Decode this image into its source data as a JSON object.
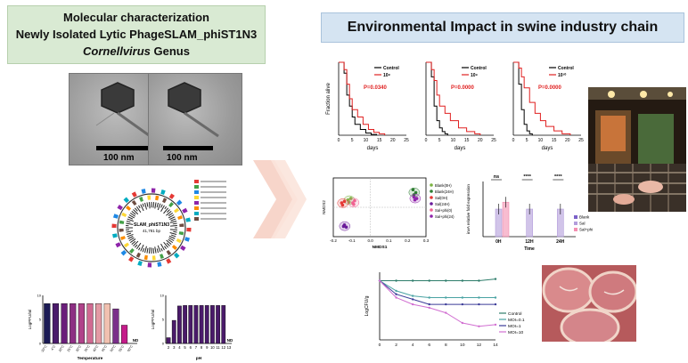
{
  "left_title": {
    "line1": "Molecular characterization",
    "line2": "Newly Isolated Lytic PhageSLAM_phiST1N3",
    "line3_italic": "Cornellvirus",
    "line3_rest": " Genus"
  },
  "right_title": "Environmental Impact in swine industry chain",
  "tem": {
    "scale_label": "100 nm"
  },
  "genome_map": {
    "name": "SLAM_phiST1N3",
    "size": "41,781 bp"
  },
  "colors": {
    "left_bg": "#d9ead3",
    "right_bg": "#d5e4f2",
    "control": "#000000",
    "phage": "#e02020"
  },
  "chart_data": [
    {
      "type": "bar",
      "id": "temperature",
      "categories": [
        "-20°C",
        "4°C",
        "20°C",
        "25°C",
        "30°C",
        "35°C",
        "40°C",
        "45°C",
        "50°C",
        "55°C",
        "60°C"
      ],
      "values": [
        8.3,
        8.3,
        8.3,
        8.3,
        8.3,
        8.3,
        8.3,
        8.3,
        7.2,
        3.8,
        0
      ],
      "colors": [
        "#1b1a55",
        "#4b1b6b",
        "#6a1f7a",
        "#8d2f83",
        "#b0438a",
        "#d06a91",
        "#e39aa4",
        "#f1c1b0",
        "#7a2f8a",
        "#c51b8a",
        "#ffffff"
      ],
      "ylabel": "LogPFU/ml",
      "xlabel": "Temperature",
      "nd_label": "ND"
    },
    {
      "type": "bar",
      "id": "ph",
      "categories": [
        "2",
        "3",
        "4",
        "5",
        "6",
        "7",
        "8",
        "9",
        "10",
        "11",
        "12",
        "13"
      ],
      "values": [
        1.2,
        4.8,
        7.8,
        7.9,
        7.9,
        7.9,
        7.9,
        7.9,
        7.9,
        7.9,
        7.9,
        0
      ],
      "ylabel": "LogPFU/ml",
      "xlabel": "pH",
      "nd_label": "ND"
    },
    {
      "type": "line",
      "id": "survival",
      "ylabel": "Fraction alive",
      "xlabel": "days",
      "xticks": [
        "0",
        "5",
        "10",
        "15",
        "20",
        "25"
      ],
      "panels": [
        {
          "legend": [
            "Control",
            "10⁸"
          ],
          "p_label": "P=0.0340",
          "series": [
            {
              "name": "Control",
              "x": [
                0,
                1,
                2,
                3,
                4,
                5,
                6,
                8,
                10,
                12,
                14
              ],
              "y": [
                1.0,
                1.0,
                0.85,
                0.55,
                0.4,
                0.25,
                0.15,
                0.08,
                0.03,
                0.01,
                0.0
              ]
            },
            {
              "name": "10⁸",
              "x": [
                0,
                1,
                2,
                3,
                4,
                5,
                7,
                9,
                11,
                13,
                15,
                17
              ],
              "y": [
                1.0,
                1.0,
                0.9,
                0.7,
                0.5,
                0.35,
                0.25,
                0.15,
                0.08,
                0.04,
                0.02,
                0.0
              ]
            }
          ]
        },
        {
          "legend": [
            "Control",
            "10⁹"
          ],
          "p_label": "P=0.0000",
          "series": [
            {
              "name": "Control",
              "x": [
                0,
                1,
                2,
                3,
                4,
                5,
                6,
                7,
                8
              ],
              "y": [
                1.0,
                1.0,
                0.8,
                0.4,
                0.2,
                0.1,
                0.05,
                0.02,
                0.0
              ]
            },
            {
              "name": "10⁹",
              "x": [
                0,
                1,
                2,
                3,
                4,
                5,
                7,
                9,
                12,
                15,
                18,
                20
              ],
              "y": [
                1.0,
                1.0,
                0.9,
                0.75,
                0.55,
                0.4,
                0.3,
                0.2,
                0.1,
                0.05,
                0.02,
                0.0
              ]
            }
          ]
        },
        {
          "legend": [
            "Control",
            "10¹⁰"
          ],
          "p_label": "P=0.0000",
          "series": [
            {
              "name": "Control",
              "x": [
                0,
                1,
                2,
                3,
                4,
                5,
                6,
                7
              ],
              "y": [
                1.0,
                1.0,
                0.7,
                0.35,
                0.15,
                0.06,
                0.02,
                0.0
              ]
            },
            {
              "name": "10¹⁰",
              "x": [
                0,
                1,
                2,
                3,
                4,
                6,
                8,
                10,
                12,
                15,
                18,
                21
              ],
              "y": [
                1.0,
                1.0,
                0.92,
                0.8,
                0.65,
                0.45,
                0.3,
                0.2,
                0.12,
                0.06,
                0.02,
                0.0
              ]
            }
          ]
        }
      ]
    },
    {
      "type": "scatter",
      "id": "nmds",
      "xlabel": "NMDS1",
      "ylabel": "NMDS2",
      "xticks": [
        "-0.2",
        "-0.1",
        "0.0",
        "0.1",
        "0.2",
        "0.3"
      ],
      "legend": [
        "Blank(0H)",
        "Blank(24H)",
        "Sal(0H)",
        "Sal(24H)",
        "Sal+phi(0)",
        "Sal+phi(24)"
      ],
      "groups": [
        {
          "name": "Blank(0H)",
          "color": "#7cb342",
          "points": [
            [
              -0.12,
              0.05
            ],
            [
              -0.105,
              0.06
            ],
            [
              -0.115,
              0.035
            ]
          ]
        },
        {
          "name": "Blank(24H)",
          "color": "#2e7d32",
          "points": [
            [
              0.23,
              0.12
            ],
            [
              0.245,
              0.1
            ],
            [
              0.235,
              0.085
            ]
          ]
        },
        {
          "name": "Sal(0H)",
          "color": "#e53935",
          "points": [
            [
              -0.155,
              0.03
            ],
            [
              -0.14,
              0.04
            ],
            [
              -0.15,
              0.015
            ]
          ]
        },
        {
          "name": "Sal(24H)",
          "color": "#6a1b9a",
          "points": [
            [
              -0.14,
              -0.12
            ],
            [
              -0.13,
              -0.135
            ],
            [
              -0.145,
              -0.13
            ]
          ]
        },
        {
          "name": "Sal+phi(0)",
          "color": "#f06292",
          "points": [
            [
              -0.095,
              0.03
            ],
            [
              -0.085,
              0.045
            ],
            [
              -0.09,
              0.02
            ]
          ]
        },
        {
          "name": "Sal+phi(24)",
          "color": "#8e24aa",
          "points": [
            [
              0.235,
              0.07
            ],
            [
              0.25,
              0.06
            ],
            [
              0.24,
              0.05
            ]
          ]
        }
      ]
    },
    {
      "type": "bar",
      "id": "expression",
      "categories": [
        "0H",
        "12H",
        "24H"
      ],
      "xlabel": "Time",
      "ylabel": "invA relative fold expression",
      "legend": [
        "Blank",
        "Sal",
        "Sal+phi"
      ],
      "series": [
        {
          "name": "Blank",
          "values": [
            0,
            0,
            0
          ]
        },
        {
          "name": "Sal",
          "values": [
            1.0,
            1.0,
            1.0
          ]
        },
        {
          "name": "Sal+phi",
          "values": [
            1.25,
            0.0,
            0.0
          ]
        }
      ],
      "significance": [
        "ns",
        "****",
        "****"
      ]
    },
    {
      "type": "line",
      "id": "logcfu",
      "xlabel": "",
      "ylabel": "LogCFU/g",
      "xticks": [
        "0",
        "2",
        "4",
        "6",
        "8",
        "10",
        "12",
        "14"
      ],
      "legend": [
        "Control",
        "MOI=0.1",
        "MOI=1",
        "MOI=10"
      ],
      "series": [
        {
          "name": "Control",
          "color": "#2e7d6b",
          "x": [
            0,
            2,
            4,
            6,
            8,
            10,
            12,
            14
          ],
          "y": [
            4.0,
            4.0,
            4.0,
            4.0,
            4.0,
            4.0,
            4.0,
            4.1
          ]
        },
        {
          "name": "MOI=0.1",
          "color": "#4aa3a3",
          "x": [
            0,
            2,
            4,
            6,
            8,
            10,
            12,
            14
          ],
          "y": [
            4.0,
            3.4,
            3.1,
            3.0,
            3.0,
            3.0,
            3.0,
            3.0
          ]
        },
        {
          "name": "MOI=1",
          "color": "#3b3b98",
          "x": [
            0,
            2,
            4,
            6,
            8,
            10,
            12,
            14
          ],
          "y": [
            4.0,
            3.2,
            2.9,
            2.6,
            2.6,
            2.6,
            2.6,
            2.6
          ]
        },
        {
          "name": "MOI=10",
          "color": "#d16fd1",
          "x": [
            0,
            2,
            4,
            6,
            8,
            10,
            12,
            14
          ],
          "y": [
            4.0,
            3.0,
            2.6,
            2.4,
            2.1,
            1.5,
            1.3,
            1.4
          ]
        }
      ]
    }
  ]
}
